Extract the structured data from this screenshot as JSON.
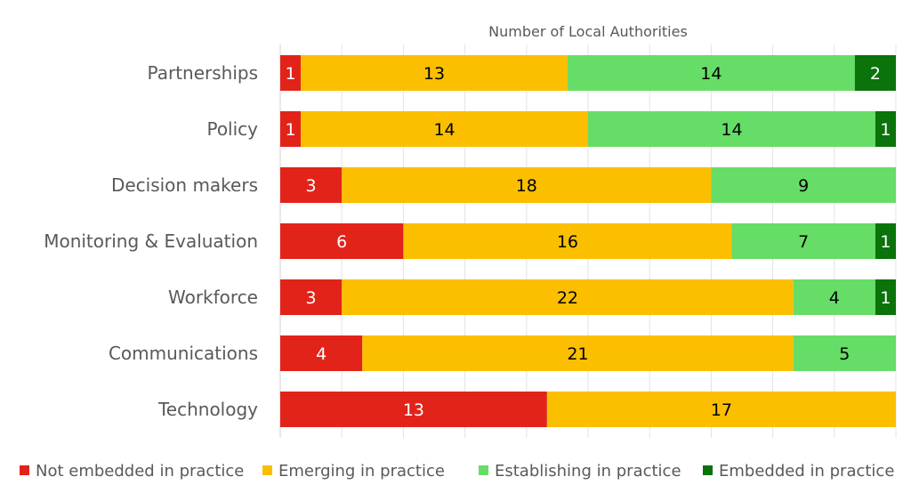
{
  "chart_data": {
    "type": "bar",
    "orientation": "horizontal",
    "stacked": true,
    "title": "Number of Local Authorities",
    "xlabel": "",
    "ylabel": "",
    "xlim": [
      0,
      30
    ],
    "x_tick_step": 3,
    "grid": true,
    "legend_position": "bottom",
    "categories": [
      "Partnerships",
      "Policy",
      "Decision makers",
      "Monitoring & Evaluation",
      "Workforce",
      "Communications",
      "Technology"
    ],
    "series": [
      {
        "name": "Not embedded in practice",
        "color": "#E2231A",
        "label_color": "#FFFFFF",
        "values": [
          1,
          1,
          3,
          6,
          3,
          4,
          13
        ]
      },
      {
        "name": "Emerging in practice",
        "color": "#FBBF00",
        "label_color": "#000000",
        "values": [
          13,
          14,
          18,
          16,
          22,
          21,
          17
        ]
      },
      {
        "name": "Establishing in practice",
        "color": "#66DD66",
        "label_color": "#000000",
        "values": [
          14,
          14,
          9,
          7,
          4,
          5,
          0
        ]
      },
      {
        "name": "Embedded in practice",
        "color": "#0A730A",
        "label_color": "#FFFFFF",
        "values": [
          2,
          1,
          0,
          1,
          1,
          0,
          0
        ]
      }
    ]
  }
}
